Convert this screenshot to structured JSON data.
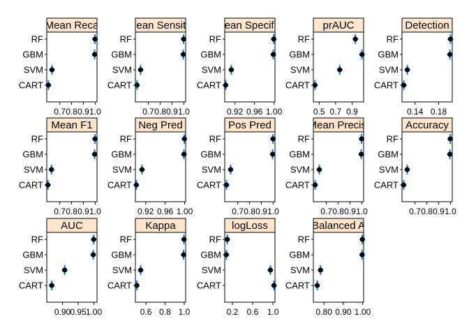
{
  "chart_data": {
    "type": "scatter",
    "description": "Dot plot grid comparing models across performance metrics (lattice dotplot with confidence intervals)",
    "categories": [
      "CART",
      "SVM",
      "GBM",
      "RF"
    ],
    "panels": [
      {
        "title": "Mean_Recall",
        "label": "Mean_Reca",
        "xlim": [
          0.59,
          1.015
        ],
        "ticks": [
          0.7,
          0.8,
          0.9,
          1.0
        ],
        "tick_labels": [
          "0.7",
          "0.8",
          "0.9",
          "1.0"
        ],
        "points": [
          {
            "model": "RF",
            "value": 0.998,
            "lo": 0.994,
            "hi": 1.0
          },
          {
            "model": "GBM",
            "value": 0.995,
            "lo": 0.99,
            "hi": 1.0
          },
          {
            "model": "SVM",
            "value": 0.634,
            "lo": 0.628,
            "hi": 0.64
          },
          {
            "model": "CART",
            "value": 0.604,
            "lo": 0.599,
            "hi": 0.609
          }
        ]
      },
      {
        "title": "Mean_Sensitivity",
        "label": "Mean_Sensitiv",
        "xlim": [
          0.59,
          1.015
        ],
        "ticks": [
          0.7,
          0.8,
          0.9,
          1.0
        ],
        "tick_labels": [
          "0.7",
          "0.8",
          "0.9",
          "1.0"
        ],
        "points": [
          {
            "model": "RF",
            "value": 0.998,
            "lo": 0.994,
            "hi": 1.0
          },
          {
            "model": "GBM",
            "value": 0.995,
            "lo": 0.99,
            "hi": 1.0
          },
          {
            "model": "SVM",
            "value": 0.634,
            "lo": 0.628,
            "hi": 0.64
          },
          {
            "model": "CART",
            "value": 0.604,
            "lo": 0.599,
            "hi": 0.609
          }
        ]
      },
      {
        "title": "Mean_Specificity",
        "label": "Mean_Specifici",
        "xlim": [
          0.899,
          1.002
        ],
        "ticks": [
          0.92,
          0.96,
          1.0
        ],
        "tick_labels": [
          "0.92",
          "0.96",
          "1.00"
        ],
        "points": [
          {
            "model": "RF",
            "value": 0.9995,
            "lo": 0.999,
            "hi": 1.0
          },
          {
            "model": "GBM",
            "value": 0.9985,
            "lo": 0.998,
            "hi": 1.0
          },
          {
            "model": "SVM",
            "value": 0.9125,
            "lo": 0.911,
            "hi": 0.914
          },
          {
            "model": "CART",
            "value": 0.901,
            "lo": 0.9,
            "hi": 0.902
          }
        ]
      },
      {
        "title": "prAUC",
        "label": "prAUC",
        "xlim": [
          0.43,
          1.04
        ],
        "ticks": [
          0.5,
          0.7,
          0.9
        ],
        "tick_labels": [
          "0.5",
          "0.7",
          "0.9"
        ],
        "points": [
          {
            "model": "RF",
            "value": 0.94,
            "lo": 0.935,
            "hi": 0.945
          },
          {
            "model": "GBM",
            "value": 1.02,
            "lo": 1.015,
            "hi": 1.025
          },
          {
            "model": "SVM",
            "value": 0.75,
            "lo": 0.745,
            "hi": 0.755
          },
          {
            "model": "CART",
            "value": 0.45,
            "lo": 0.445,
            "hi": 0.455
          }
        ]
      },
      {
        "title": "Detection_Rate",
        "label": "Detection_",
        "xlim": [
          0.118,
          0.203
        ],
        "ticks": [
          0.14,
          0.18
        ],
        "tick_labels": [
          "0.14",
          "0.18"
        ],
        "points": [
          {
            "model": "RF",
            "value": 0.2,
            "lo": 0.199,
            "hi": 0.201
          },
          {
            "model": "GBM",
            "value": 0.199,
            "lo": 0.198,
            "hi": 0.2
          },
          {
            "model": "SVM",
            "value": 0.127,
            "lo": 0.126,
            "hi": 0.128
          },
          {
            "model": "CART",
            "value": 0.121,
            "lo": 0.12,
            "hi": 0.122
          }
        ]
      },
      {
        "title": "Mean_F1",
        "label": "Mean_F1",
        "xlim": [
          0.59,
          1.015
        ],
        "ticks": [
          0.7,
          0.8,
          0.9,
          1.0
        ],
        "tick_labels": [
          "0.7",
          "0.8",
          "0.9",
          "1.0"
        ],
        "points": [
          {
            "model": "RF",
            "value": 0.998,
            "lo": 0.994,
            "hi": 1.0
          },
          {
            "model": "GBM",
            "value": 0.995,
            "lo": 0.99,
            "hi": 1.0
          },
          {
            "model": "SVM",
            "value": 0.63,
            "lo": 0.624,
            "hi": 0.636
          },
          {
            "model": "CART",
            "value": 0.6,
            "lo": 0.595,
            "hi": 0.605
          }
        ]
      },
      {
        "title": "Neg_Pred_Value",
        "label": "Neg_Pred_",
        "xlim": [
          0.899,
          1.002
        ],
        "ticks": [
          0.92,
          0.96,
          1.0
        ],
        "tick_labels": [
          "0.92",
          "0.96",
          "1.00"
        ],
        "points": [
          {
            "model": "RF",
            "value": 0.9995,
            "lo": 0.999,
            "hi": 1.0
          },
          {
            "model": "GBM",
            "value": 0.9985,
            "lo": 0.998,
            "hi": 1.0
          },
          {
            "model": "SVM",
            "value": 0.9125,
            "lo": 0.911,
            "hi": 0.914
          },
          {
            "model": "CART",
            "value": 0.901,
            "lo": 0.9,
            "hi": 0.902
          }
        ]
      },
      {
        "title": "Pos_Pred_Value",
        "label": "Pos_Pred_",
        "xlim": [
          0.59,
          1.015
        ],
        "ticks": [
          0.7,
          0.8,
          0.9,
          1.0
        ],
        "tick_labels": [
          "0.7",
          "0.8",
          "0.9",
          "1.0"
        ],
        "points": [
          {
            "model": "RF",
            "value": 0.998,
            "lo": 0.994,
            "hi": 1.0
          },
          {
            "model": "GBM",
            "value": 0.995,
            "lo": 0.99,
            "hi": 1.0
          },
          {
            "model": "SVM",
            "value": 0.64,
            "lo": 0.634,
            "hi": 0.646
          },
          {
            "model": "CART",
            "value": 0.605,
            "lo": 0.59,
            "hi": 0.62
          }
        ]
      },
      {
        "title": "Mean_Precision",
        "label": "Mean_Precisi",
        "xlim": [
          0.59,
          1.015
        ],
        "ticks": [
          0.7,
          0.8,
          0.9,
          1.0
        ],
        "tick_labels": [
          "0.7",
          "0.8",
          "0.9",
          "1.0"
        ],
        "points": [
          {
            "model": "RF",
            "value": 0.998,
            "lo": 0.994,
            "hi": 1.0
          },
          {
            "model": "GBM",
            "value": 0.995,
            "lo": 0.99,
            "hi": 1.0
          },
          {
            "model": "SVM",
            "value": 0.64,
            "lo": 0.634,
            "hi": 0.646
          },
          {
            "model": "CART",
            "value": 0.605,
            "lo": 0.59,
            "hi": 0.62
          }
        ]
      },
      {
        "title": "Accuracy",
        "label": "Accuracy",
        "xlim": [
          0.59,
          1.015
        ],
        "ticks": [
          0.7,
          0.8,
          0.9,
          1.0
        ],
        "tick_labels": [
          "0.7",
          "0.8",
          "0.9",
          "1.0"
        ],
        "points": [
          {
            "model": "RF",
            "value": 0.998,
            "lo": 0.994,
            "hi": 1.0
          },
          {
            "model": "GBM",
            "value": 0.995,
            "lo": 0.99,
            "hi": 1.0
          },
          {
            "model": "SVM",
            "value": 0.634,
            "lo": 0.628,
            "hi": 0.64
          },
          {
            "model": "CART",
            "value": 0.604,
            "lo": 0.599,
            "hi": 0.609
          }
        ]
      },
      {
        "title": "AUC",
        "label": "AUC",
        "xlim": [
          0.85,
          1.01
        ],
        "ticks": [
          0.9,
          0.95,
          1.0
        ],
        "tick_labels": [
          "0.90",
          "0.95",
          "1.00"
        ],
        "points": [
          {
            "model": "RF",
            "value": 0.9995,
            "lo": 0.999,
            "hi": 1.0
          },
          {
            "model": "GBM",
            "value": 0.998,
            "lo": 0.997,
            "hi": 0.999
          },
          {
            "model": "SVM",
            "value": 0.907,
            "lo": 0.902,
            "hi": 0.912
          },
          {
            "model": "CART",
            "value": 0.866,
            "lo": 0.862,
            "hi": 0.87
          }
        ]
      },
      {
        "title": "Kappa",
        "label": "Kappa",
        "xlim": [
          0.49,
          1.015
        ],
        "ticks": [
          0.6,
          0.8,
          1.0
        ],
        "tick_labels": [
          "0.6",
          "0.8",
          "1.0"
        ],
        "points": [
          {
            "model": "RF",
            "value": 0.998,
            "lo": 0.994,
            "hi": 1.0
          },
          {
            "model": "GBM",
            "value": 0.994,
            "lo": 0.988,
            "hi": 1.0
          },
          {
            "model": "SVM",
            "value": 0.545,
            "lo": 0.538,
            "hi": 0.552
          },
          {
            "model": "CART",
            "value": 0.505,
            "lo": 0.499,
            "hi": 0.511
          }
        ]
      },
      {
        "title": "logLoss",
        "label": "logLoss",
        "xlim": [
          0.05,
          1.04
        ],
        "ticks": [
          0.2,
          0.6,
          1.0
        ],
        "tick_labels": [
          "0.2",
          "0.6",
          "1.0"
        ],
        "points": [
          {
            "model": "RF",
            "value": 0.1,
            "lo": 0.095,
            "hi": 0.105
          },
          {
            "model": "GBM",
            "value": 0.082,
            "lo": 0.077,
            "hi": 0.087
          },
          {
            "model": "SVM",
            "value": 0.95,
            "lo": 0.93,
            "hi": 0.97
          },
          {
            "model": "CART",
            "value": 1.02,
            "lo": 1.005,
            "hi": 1.035
          }
        ]
      },
      {
        "title": "Balanced_Accuracy",
        "label": "Balanced_A",
        "xlim": [
          0.745,
          1.005
        ],
        "ticks": [
          0.8,
          0.9,
          1.0
        ],
        "tick_labels": [
          "0.80",
          "0.90",
          "1.00"
        ],
        "points": [
          {
            "model": "RF",
            "value": 0.9985,
            "lo": 0.997,
            "hi": 1.0
          },
          {
            "model": "GBM",
            "value": 0.997,
            "lo": 0.994,
            "hi": 1.0
          },
          {
            "model": "SVM",
            "value": 0.782,
            "lo": 0.778,
            "hi": 0.786
          },
          {
            "model": "CART",
            "value": 0.765,
            "lo": 0.762,
            "hi": 0.768
          }
        ]
      }
    ],
    "colors": {
      "strip_fill": "#FFE5CC",
      "point": "#000000",
      "interval": "#0080FF",
      "border": "#000000"
    }
  }
}
